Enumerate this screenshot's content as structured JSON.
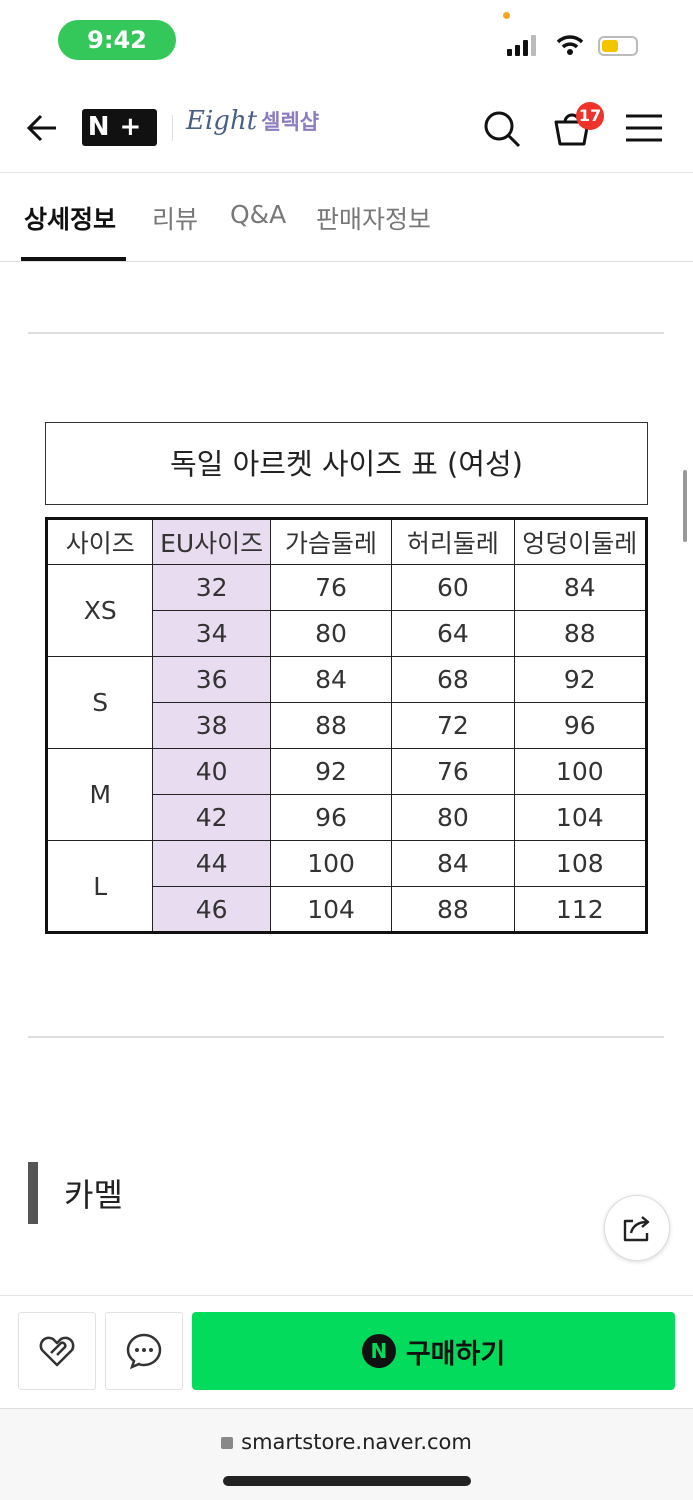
{
  "status": {
    "time": "9:42"
  },
  "header": {
    "logo_np": "N+",
    "logo_eight": "Eight",
    "logo_shop": "셀렉샵",
    "cart_count": "17"
  },
  "tabs": [
    {
      "label": "상세정보",
      "active": true
    },
    {
      "label": "리뷰"
    },
    {
      "label": "Q&A"
    },
    {
      "label": "판매자정보"
    }
  ],
  "size_chart": {
    "title": "독일 아르켓 사이즈 표 (여성)",
    "headers": [
      "사이즈",
      "EU사이즈",
      "가슴둘레",
      "허리둘레",
      "엉덩이둘레"
    ],
    "groups": [
      {
        "size": "XS",
        "rows": [
          [
            "32",
            "76",
            "60",
            "84"
          ],
          [
            "34",
            "80",
            "64",
            "88"
          ]
        ]
      },
      {
        "size": "S",
        "rows": [
          [
            "36",
            "84",
            "68",
            "92"
          ],
          [
            "38",
            "88",
            "72",
            "96"
          ]
        ]
      },
      {
        "size": "M",
        "rows": [
          [
            "40",
            "92",
            "76",
            "100"
          ],
          [
            "42",
            "96",
            "80",
            "104"
          ]
        ]
      },
      {
        "size": "L",
        "rows": [
          [
            "44",
            "100",
            "84",
            "108"
          ],
          [
            "46",
            "104",
            "88",
            "112"
          ]
        ]
      }
    ],
    "highlight_color": "#e8dcf0"
  },
  "section": {
    "color_label": "카멜"
  },
  "bottom": {
    "buy_label": "구매하기",
    "buy_icon": "N",
    "buy_color": "#03db5d"
  },
  "browser": {
    "url": "smartstore.naver.com"
  }
}
